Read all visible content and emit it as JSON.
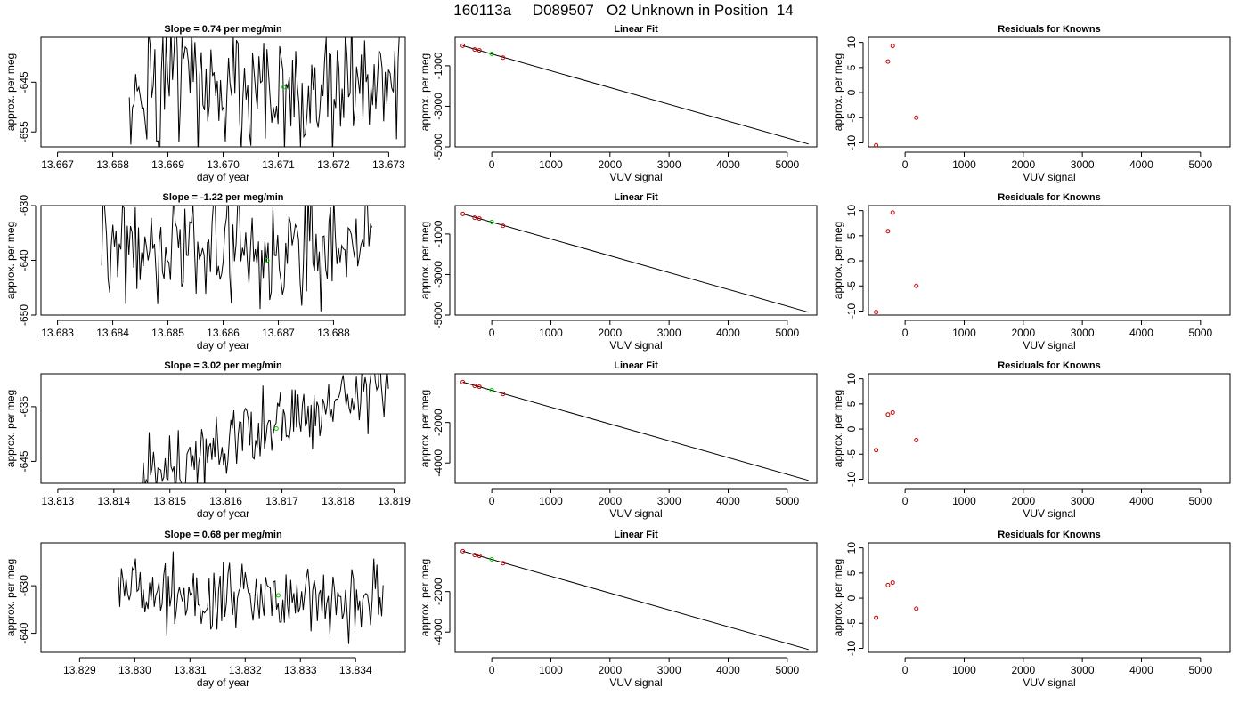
{
  "title": "160113a     D089507   O2 Unknown in Position  14",
  "chart_data": [
    {
      "type": "line",
      "title": "Slope =  0.74  per meg/min",
      "xlabel": "day of year",
      "ylabel": "approx. per meg",
      "xlim": [
        13.6667,
        13.6733
      ],
      "ylim": [
        -658,
        -636
      ],
      "xticks": [
        "13.667",
        "13.668",
        "13.669",
        "13.670",
        "13.671",
        "13.672",
        "13.673"
      ],
      "yticks": [
        "-645",
        "-655"
      ],
      "start": 13.6683,
      "end": 13.6732,
      "mean": -646,
      "amp": 12,
      "trend_start": 0,
      "trend_end": 0,
      "marker": {
        "x": 13.6711,
        "y": -646
      }
    },
    {
      "type": "scatter",
      "title": "Linear Fit",
      "xlabel": "VUV signal",
      "ylabel": "approx. per meg",
      "xlim": [
        -620,
        5500
      ],
      "ylim": [
        -5000,
        400
      ],
      "xticks": [
        "0",
        "1000",
        "2000",
        "3000",
        "4000",
        "5000"
      ],
      "yticks": [
        "-1000",
        "-3000",
        "-5000"
      ],
      "knowns": [
        {
          "x": -490,
          "y": -10
        },
        {
          "x": -290,
          "y": -200
        },
        {
          "x": -210,
          "y": -240
        },
        {
          "x": 190,
          "y": -600
        }
      ],
      "unknown": {
        "x": 0,
        "y": -410
      },
      "fit": {
        "x": [
          -490,
          5360
        ],
        "y": [
          -10,
          -4860
        ]
      }
    },
    {
      "type": "scatter",
      "title": "Residuals for Knowns",
      "xlabel": "VUV signal",
      "ylabel": "approx. per meg",
      "xlim": [
        -620,
        5500
      ],
      "ylim": [
        -10.8,
        11
      ],
      "xticks": [
        "0",
        "1000",
        "2000",
        "3000",
        "4000",
        "5000"
      ],
      "yticks": [
        "-10",
        "-5",
        "0",
        "5",
        "10"
      ],
      "x": [
        -490,
        -290,
        -210,
        190
      ],
      "y": [
        -10.5,
        6.2,
        9.3,
        -5
      ]
    },
    {
      "type": "line",
      "title": "Slope =  -1.22  per meg/min",
      "xlabel": "day of year",
      "ylabel": "approx. per meg",
      "xlim": [
        13.6827,
        13.6893
      ],
      "ylim": [
        -650,
        -630
      ],
      "xticks": [
        "13.683",
        "13.684",
        "13.685",
        "13.686",
        "13.687",
        "13.688"
      ],
      "yticks": [
        "-630",
        "-640",
        "-650"
      ],
      "start": 13.6838,
      "end": 13.6887,
      "mean": -638,
      "amp": 9,
      "trend_start": 0,
      "trend_end": 0,
      "marker": {
        "x": 13.6868,
        "y": -640
      }
    },
    {
      "type": "scatter",
      "title": "Linear Fit",
      "xlabel": "VUV signal",
      "ylabel": "approx. per meg",
      "xlim": [
        -620,
        5500
      ],
      "ylim": [
        -5000,
        400
      ],
      "xticks": [
        "0",
        "1000",
        "2000",
        "3000",
        "4000",
        "5000"
      ],
      "yticks": [
        "-1000",
        "-3000",
        "-5000"
      ],
      "knowns": [
        {
          "x": -490,
          "y": -10
        },
        {
          "x": -290,
          "y": -200
        },
        {
          "x": -210,
          "y": -240
        },
        {
          "x": 190,
          "y": -600
        }
      ],
      "unknown": {
        "x": 0,
        "y": -410
      },
      "fit": {
        "x": [
          -490,
          5360
        ],
        "y": [
          -10,
          -4860
        ]
      }
    },
    {
      "type": "scatter",
      "title": "Residuals for Knowns",
      "xlabel": "VUV signal",
      "ylabel": "approx. per meg",
      "xlim": [
        -620,
        5500
      ],
      "ylim": [
        -10.8,
        11
      ],
      "xticks": [
        "0",
        "1000",
        "2000",
        "3000",
        "4000",
        "5000"
      ],
      "yticks": [
        "-10",
        "-5",
        "0",
        "5",
        "10"
      ],
      "x": [
        -490,
        -290,
        -210,
        190
      ],
      "y": [
        -10.2,
        5.9,
        9.6,
        -5
      ]
    },
    {
      "type": "line",
      "title": "Slope =  3.02  per meg/min",
      "xlabel": "day of year",
      "ylabel": "approx. per meg",
      "xlim": [
        13.8127,
        13.8192
      ],
      "ylim": [
        -649,
        -629
      ],
      "xticks": [
        "13.813",
        "13.814",
        "13.815",
        "13.816",
        "13.817",
        "13.818",
        "13.819"
      ],
      "yticks": [
        "-635",
        "-645"
      ],
      "start": 13.8145,
      "end": 13.8189,
      "mean": -640,
      "amp": 6,
      "trend_start": -8,
      "trend_end": 9,
      "marker": {
        "x": 13.8169,
        "y": -639
      }
    },
    {
      "type": "scatter",
      "title": "Linear Fit",
      "xlabel": "VUV signal",
      "ylabel": "approx. per meg",
      "xlim": [
        -620,
        5500
      ],
      "ylim": [
        -5000,
        400
      ],
      "xticks": [
        "0",
        "1000",
        "2000",
        "3000",
        "4000",
        "5000"
      ],
      "yticks": [
        "-2000",
        "-4000"
      ],
      "knowns": [
        {
          "x": -490,
          "y": -10
        },
        {
          "x": -290,
          "y": -200
        },
        {
          "x": -210,
          "y": -240
        },
        {
          "x": 190,
          "y": -600
        }
      ],
      "unknown": {
        "x": 0,
        "y": -410
      },
      "fit": {
        "x": [
          -490,
          5360
        ],
        "y": [
          -10,
          -4860
        ]
      }
    },
    {
      "type": "scatter",
      "title": "Residuals for Knowns",
      "xlabel": "VUV signal",
      "ylabel": "approx. per meg",
      "xlim": [
        -620,
        5500
      ],
      "ylim": [
        -10.8,
        11
      ],
      "xticks": [
        "0",
        "1000",
        "2000",
        "3000",
        "4000",
        "5000"
      ],
      "yticks": [
        "-10",
        "-5",
        "0",
        "5",
        "10"
      ],
      "x": [
        -490,
        -290,
        -210,
        190
      ],
      "y": [
        -4.2,
        2.9,
        3.3,
        -2.2
      ]
    },
    {
      "type": "line",
      "title": "Slope =  0.68  per meg/min",
      "xlabel": "day of year",
      "ylabel": "approx. per meg",
      "xlim": [
        13.8283,
        13.8349
      ],
      "ylim": [
        -644,
        -621
      ],
      "xticks": [
        "13.829",
        "13.830",
        "13.831",
        "13.832",
        "13.833",
        "13.834"
      ],
      "yticks": [
        "-630",
        "-640"
      ],
      "start": 13.8297,
      "end": 13.8345,
      "mean": -632,
      "amp": 7,
      "trend_start": 0,
      "trend_end": 0,
      "marker": {
        "x": 13.8326,
        "y": -632
      }
    },
    {
      "type": "scatter",
      "title": "Linear Fit",
      "xlabel": "VUV signal",
      "ylabel": "approx. per meg",
      "xlim": [
        -620,
        5500
      ],
      "ylim": [
        -5000,
        400
      ],
      "xticks": [
        "0",
        "1000",
        "2000",
        "3000",
        "4000",
        "5000"
      ],
      "yticks": [
        "-2000",
        "-4000"
      ],
      "knowns": [
        {
          "x": -490,
          "y": -10
        },
        {
          "x": -290,
          "y": -200
        },
        {
          "x": -210,
          "y": -240
        },
        {
          "x": 190,
          "y": -600
        }
      ],
      "unknown": {
        "x": 0,
        "y": -410
      },
      "fit": {
        "x": [
          -490,
          5360
        ],
        "y": [
          -10,
          -4860
        ]
      }
    },
    {
      "type": "scatter",
      "title": "Residuals for Knowns",
      "xlabel": "VUV signal",
      "ylabel": "approx. per meg",
      "xlim": [
        -620,
        5500
      ],
      "ylim": [
        -10.8,
        11
      ],
      "xticks": [
        "0",
        "1000",
        "2000",
        "3000",
        "4000",
        "5000"
      ],
      "yticks": [
        "-10",
        "-5",
        "0",
        "5",
        "10"
      ],
      "x": [
        -490,
        -290,
        -210,
        190
      ],
      "y": [
        -3.9,
        2.6,
        3.1,
        -2.1
      ]
    }
  ]
}
